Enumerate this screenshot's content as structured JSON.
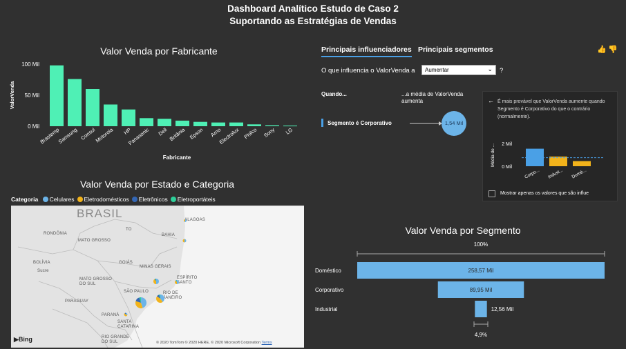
{
  "header": {
    "line1": "Dashboard Analítico Estudo de Caso 2",
    "line2": "Suportando as Estratégias de Vendas"
  },
  "manufacturer_chart": {
    "title": "Valor Venda por Fabricante",
    "ylabel": "ValorVenda",
    "xlabel": "Fabricante",
    "yticks": [
      "100 Mil",
      "50 Mil",
      "0 Mil"
    ]
  },
  "map_chart": {
    "title": "Valor Venda por Estado e Categoria",
    "legend_title": "Categoria",
    "legend": [
      {
        "label": "Celulares",
        "color": "#6cb4e8"
      },
      {
        "label": "Eletrodomésticos",
        "color": "#f2b31b"
      },
      {
        "label": "Eletrônicos",
        "color": "#3467b5"
      },
      {
        "label": "Eletroportáteis",
        "color": "#2ecf9a"
      }
    ],
    "country_label": "BRASIL",
    "places": [
      "RONDÔNIA",
      "MATO GROSSO",
      "BOLÍVIA",
      "Sucre",
      "GOIÁS",
      "MINAS GERAIS",
      "MATO GROSSO DO SUL",
      "SÃO PAULO",
      "PARAGUAY",
      "PARANÁ",
      "SANTA CATARINA",
      "RIO GRANDE DO SUL",
      "BAHIA",
      "ALAGOAS",
      "TO",
      "ESPÍRITO SANTO",
      "RIO DE JANEIRO"
    ],
    "bing": "Bing",
    "copyright": "© 2020 TomTom © 2020 HERE, © 2020 Microsoft Corporation",
    "terms": "Terms"
  },
  "influencers": {
    "tab1": "Principais influenciadores",
    "tab2": "Principais segmentos",
    "question": "O que influencia o ValorVenda a",
    "dropdown_value": "Aumentar",
    "help": "?",
    "when_label": "Quando...",
    "avg_label": "...a média de ValorVenda aumenta",
    "factor": "Segmento é Corporativo",
    "bubble_value": "1,54 Mil",
    "detail_text": "É mais provável que ValorVenda aumente quando Segmento é Corporativo do que o contrário (normalmente).",
    "detail_ylabel": "Média de ...",
    "detail_yticks": [
      "2 Mil",
      "0 Mil"
    ],
    "checkbox_label": "Mostrar apenas os valores que são influe"
  },
  "segment_chart": {
    "title": "Valor Venda por Segmento",
    "top_pct": "100%",
    "bottom_pct": "4,9%"
  },
  "colors": {
    "bar": "#4ff0b5",
    "funnel": "#6cb4e8",
    "detail_blue": "#4aa0e6",
    "detail_yellow": "#f2b31b",
    "background": "#303030"
  },
  "chart_data": [
    {
      "type": "bar",
      "title": "Valor Venda por Fabricante",
      "xlabel": "Fabricante",
      "ylabel": "ValorVenda",
      "ylim": [
        0,
        100
      ],
      "categories": [
        "Brastemp",
        "Samsung",
        "Consul",
        "Motorola",
        "HP",
        "Panasonic",
        "Dell",
        "Britânia",
        "Epson",
        "Arno",
        "Electrolux",
        "Philco",
        "Sony",
        "LG"
      ],
      "values": [
        98,
        76,
        60,
        35,
        27,
        13,
        12,
        9,
        7,
        6,
        6,
        3,
        1.5,
        1
      ],
      "grid": false
    },
    {
      "type": "bar",
      "title": "Valor Venda por Segmento",
      "orientation": "horizontal",
      "categories": [
        "Doméstico",
        "Corporativo",
        "Industrial"
      ],
      "values": [
        258.57,
        89.95,
        12.56
      ],
      "value_labels": [
        "258,57 Mil",
        "89,95 Mil",
        "12,56 Mil"
      ]
    },
    {
      "type": "bar",
      "title": "",
      "ylabel": "Média de ...",
      "categories": [
        "Corpo...",
        "Indust...",
        "Domé..."
      ],
      "values": [
        1.54,
        0.85,
        0.45
      ],
      "colors": [
        "#4aa0e6",
        "#f2b31b",
        "#f2b31b"
      ],
      "ylim": [
        0,
        2
      ]
    }
  ]
}
